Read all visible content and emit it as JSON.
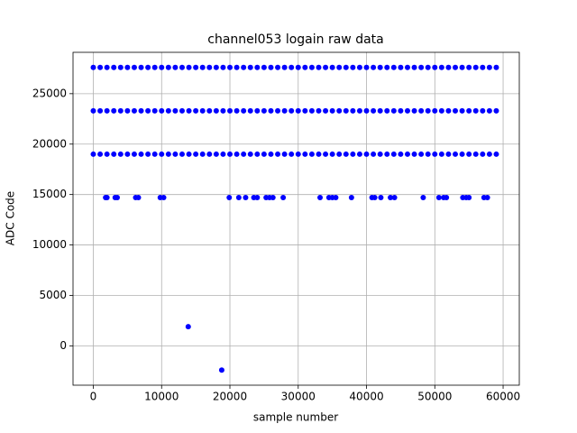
{
  "chart_data": {
    "type": "scatter",
    "title": "channel053 logain raw data",
    "x_label": "sample number",
    "y_label": "ADC Code",
    "color": "#0000ff",
    "grid": true,
    "xlim": [
      -2970,
      62370
    ],
    "ylim": [
      -3900,
      29100
    ],
    "xticks": [
      0,
      10000,
      20000,
      30000,
      40000,
      50000,
      60000
    ],
    "yticks": [
      0,
      5000,
      10000,
      15000,
      20000,
      25000
    ],
    "x": [
      0,
      1000,
      2000,
      3000,
      4000,
      5000,
      6000,
      7000,
      8000,
      9000,
      10000,
      11000,
      12000,
      13000,
      14000,
      15000,
      16000,
      17000,
      18000,
      19000,
      20000,
      21000,
      22000,
      23000,
      24000,
      25000,
      26000,
      27000,
      28000,
      29000,
      30000,
      31000,
      32000,
      33000,
      34000,
      35000,
      36000,
      37000,
      38000,
      39000,
      40000,
      41000,
      42000,
      43000,
      44000,
      45000,
      46000,
      47000,
      48000,
      49000,
      50000,
      51000,
      52000,
      53000,
      54000,
      55000,
      56000,
      57000,
      58000,
      59000,
      0,
      1000,
      2000,
      3000,
      4000,
      5000,
      6000,
      7000,
      8000,
      9000,
      10000,
      11000,
      12000,
      13000,
      14000,
      15000,
      16000,
      17000,
      18000,
      19000,
      20000,
      21000,
      22000,
      23000,
      24000,
      25000,
      26000,
      27000,
      28000,
      29000,
      30000,
      31000,
      32000,
      33000,
      34000,
      35000,
      36000,
      37000,
      38000,
      39000,
      40000,
      41000,
      42000,
      43000,
      44000,
      45000,
      46000,
      47000,
      48000,
      49000,
      50000,
      51000,
      52000,
      53000,
      54000,
      55000,
      56000,
      57000,
      58000,
      59000,
      0,
      1000,
      2000,
      3000,
      4000,
      5000,
      6000,
      7000,
      8000,
      9000,
      10000,
      11000,
      12000,
      13000,
      14000,
      15000,
      16000,
      17000,
      18000,
      19000,
      20000,
      21000,
      22000,
      23000,
      24000,
      25000,
      26000,
      27000,
      28000,
      29000,
      30000,
      31000,
      32000,
      33000,
      34000,
      35000,
      36000,
      37000,
      38000,
      39000,
      40000,
      41000,
      42000,
      43000,
      44000,
      45000,
      46000,
      47000,
      48000,
      49000,
      50000,
      51000,
      52000,
      53000,
      54000,
      55000,
      56000,
      57000,
      58000,
      59000,
      1800,
      2000,
      3200,
      3500,
      6200,
      6600,
      9800,
      10300,
      19900,
      21300,
      22300,
      23500,
      24000,
      25300,
      25800,
      26300,
      27800,
      33200,
      34500,
      35000,
      35500,
      37800,
      40800,
      41200,
      42100,
      43500,
      44100,
      48300,
      50600,
      51300,
      51700,
      54100,
      54600,
      55000,
      57200,
      57700,
      13900,
      18800
    ],
    "values": [
      27600,
      27600,
      27600,
      27600,
      27600,
      27600,
      27600,
      27600,
      27600,
      27600,
      27600,
      27600,
      27600,
      27600,
      27600,
      27600,
      27600,
      27600,
      27600,
      27600,
      27600,
      27600,
      27600,
      27600,
      27600,
      27600,
      27600,
      27600,
      27600,
      27600,
      27600,
      27600,
      27600,
      27600,
      27600,
      27600,
      27600,
      27600,
      27600,
      27600,
      27600,
      27600,
      27600,
      27600,
      27600,
      27600,
      27600,
      27600,
      27600,
      27600,
      27600,
      27600,
      27600,
      27600,
      27600,
      27600,
      27600,
      27600,
      27600,
      27600,
      23300,
      23300,
      23300,
      23300,
      23300,
      23300,
      23300,
      23300,
      23300,
      23300,
      23300,
      23300,
      23300,
      23300,
      23300,
      23300,
      23300,
      23300,
      23300,
      23300,
      23300,
      23300,
      23300,
      23300,
      23300,
      23300,
      23300,
      23300,
      23300,
      23300,
      23300,
      23300,
      23300,
      23300,
      23300,
      23300,
      23300,
      23300,
      23300,
      23300,
      23300,
      23300,
      23300,
      23300,
      23300,
      23300,
      23300,
      23300,
      23300,
      23300,
      23300,
      23300,
      23300,
      23300,
      23300,
      23300,
      23300,
      23300,
      23300,
      23300,
      19000,
      19000,
      19000,
      19000,
      19000,
      19000,
      19000,
      19000,
      19000,
      19000,
      19000,
      19000,
      19000,
      19000,
      19000,
      19000,
      19000,
      19000,
      19000,
      19000,
      19000,
      19000,
      19000,
      19000,
      19000,
      19000,
      19000,
      19000,
      19000,
      19000,
      19000,
      19000,
      19000,
      19000,
      19000,
      19000,
      19000,
      19000,
      19000,
      19000,
      19000,
      19000,
      19000,
      19000,
      19000,
      19000,
      19000,
      19000,
      19000,
      19000,
      19000,
      19000,
      19000,
      19000,
      19000,
      19000,
      19000,
      19000,
      19000,
      19000,
      14700,
      14700,
      14700,
      14700,
      14700,
      14700,
      14700,
      14700,
      14700,
      14700,
      14700,
      14700,
      14700,
      14700,
      14700,
      14700,
      14700,
      14700,
      14700,
      14700,
      14700,
      14700,
      14700,
      14700,
      14700,
      14700,
      14700,
      14700,
      14700,
      14700,
      14700,
      14700,
      14700,
      14700,
      14700,
      14700,
      1900,
      -2400
    ]
  }
}
